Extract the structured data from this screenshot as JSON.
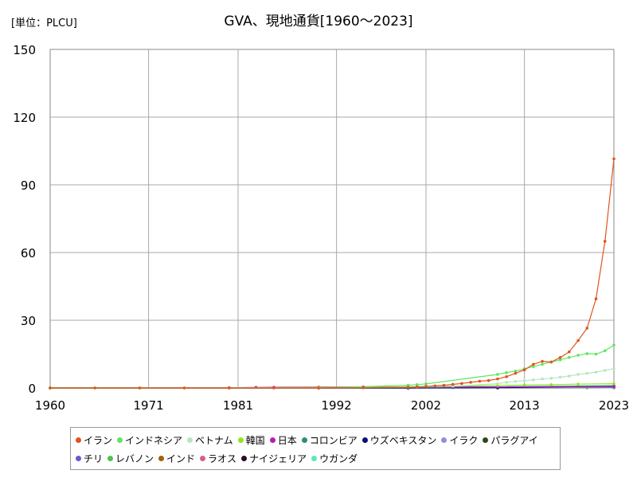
{
  "chart_data": {
    "type": "line",
    "title": "GVA、現地通貨[1960～2023]",
    "unit_label": "[単位：PLCU]",
    "xlabel": "",
    "ylabel": "",
    "xlim": [
      1960,
      2023
    ],
    "ylim": [
      0,
      150
    ],
    "xticks": [
      1960,
      1971,
      1981,
      1992,
      2002,
      2013,
      2023
    ],
    "yticks": [
      0,
      30,
      60,
      90,
      120,
      150
    ],
    "grid": true,
    "legend_position": "bottom",
    "series": [
      {
        "name": "イラン",
        "color": "#e0541c",
        "x": [
          1960,
          1965,
          1970,
          1975,
          1980,
          1985,
          1990,
          1995,
          2000,
          2001,
          2002,
          2003,
          2004,
          2005,
          2006,
          2007,
          2008,
          2009,
          2010,
          2011,
          2012,
          2013,
          2014,
          2015,
          2016,
          2017,
          2018,
          2019,
          2020,
          2021,
          2022,
          2023
        ],
        "y": [
          0,
          0,
          0,
          0,
          0,
          0,
          0,
          0.1,
          0.3,
          0.5,
          0.7,
          0.9,
          1.2,
          1.6,
          2.0,
          2.5,
          3.0,
          3.3,
          4.0,
          5.0,
          6.5,
          8.0,
          10.5,
          11.8,
          11.5,
          13.5,
          16.0,
          21.0,
          26.5,
          39.5,
          65.0,
          101.5
        ]
      },
      {
        "name": "インドネシア",
        "color": "#5ee65e",
        "x": [
          1960,
          1970,
          1980,
          1990,
          2000,
          2001,
          2002,
          2010,
          2011,
          2012,
          2013,
          2014,
          2015,
          2016,
          2017,
          2018,
          2019,
          2020,
          2021,
          2022,
          2023
        ],
        "y": [
          0,
          0,
          0,
          0,
          1.2,
          1.5,
          1.8,
          6.0,
          6.8,
          7.5,
          8.5,
          9.5,
          10.5,
          11.5,
          12.5,
          13.5,
          14.5,
          15.2,
          15.0,
          16.5,
          19.0
        ]
      },
      {
        "name": "ベトナム",
        "color": "#b7e6c4",
        "x": [
          1960,
          1990,
          2000,
          2005,
          2010,
          2011,
          2012,
          2013,
          2014,
          2015,
          2016,
          2017,
          2018,
          2019,
          2020,
          2021,
          2022,
          2023
        ],
        "y": [
          0,
          0,
          0.4,
          0.8,
          1.9,
          2.5,
          2.9,
          3.2,
          3.6,
          4.0,
          4.3,
          4.8,
          5.3,
          6.0,
          6.5,
          7.0,
          7.8,
          8.5
        ]
      },
      {
        "name": "韓国",
        "color": "#8ee61c",
        "x": [
          1960,
          1980,
          1990,
          2000,
          2010,
          2013,
          2016,
          2019,
          2023
        ],
        "y": [
          0,
          0,
          0.2,
          0.5,
          1.1,
          1.3,
          1.5,
          1.7,
          1.9
        ]
      },
      {
        "name": "日本",
        "color": "#b41eb4",
        "x": [
          1960,
          1980,
          1983,
          1985,
          1990,
          1995,
          2000,
          2010,
          2023
        ],
        "y": [
          0,
          0.1,
          0.25,
          0.3,
          0.4,
          0.45,
          0.5,
          0.5,
          0.55
        ]
      },
      {
        "name": "コロンビア",
        "color": "#2e8b7a",
        "x": [
          1960,
          1990,
          2000,
          2010,
          2023
        ],
        "y": [
          0,
          0.05,
          0.2,
          0.5,
          1.0
        ]
      },
      {
        "name": "ウズベキスタン",
        "color": "#0a0a7a",
        "x": [
          1960,
          2000,
          2010,
          2023
        ],
        "y": [
          0,
          0,
          0.1,
          0.8
        ]
      },
      {
        "name": "イラク",
        "color": "#8f8fdc",
        "x": [
          1960,
          1990,
          2005,
          2010,
          2023
        ],
        "y": [
          0,
          0,
          0.1,
          0.2,
          0.3
        ]
      },
      {
        "name": "パラグアイ",
        "color": "#2a4a1a",
        "x": [
          1960,
          1990,
          2010,
          2023
        ],
        "y": [
          0,
          0.01,
          0.08,
          0.2
        ]
      },
      {
        "name": "チリ",
        "color": "#6a5acd",
        "x": [
          1960,
          1990,
          2010,
          2023
        ],
        "y": [
          0,
          0.02,
          0.12,
          0.25
        ]
      },
      {
        "name": "レバノン",
        "color": "#4ec24e",
        "x": [
          1960,
          2000,
          2010,
          2020,
          2023
        ],
        "y": [
          0,
          0.04,
          0.07,
          0.1,
          0.6
        ]
      },
      {
        "name": "インド",
        "color": "#a0620a",
        "x": [
          1960,
          1990,
          2000,
          2010,
          2023
        ],
        "y": [
          0,
          0.01,
          0.02,
          0.07,
          0.25
        ]
      },
      {
        "name": "ラオス",
        "color": "#d45f8a",
        "x": [
          1960,
          2000,
          2010,
          2023
        ],
        "y": [
          0,
          0.01,
          0.05,
          0.2
        ]
      },
      {
        "name": "ナイジェリア",
        "color": "#2a0a2a",
        "x": [
          1960,
          2000,
          2010,
          2023
        ],
        "y": [
          0,
          0.005,
          0.05,
          0.2
        ]
      },
      {
        "name": "ウガンダ",
        "color": "#5ee6c0",
        "x": [
          1960,
          2000,
          2010,
          2023
        ],
        "y": [
          0,
          0.01,
          0.03,
          0.15
        ]
      }
    ]
  }
}
